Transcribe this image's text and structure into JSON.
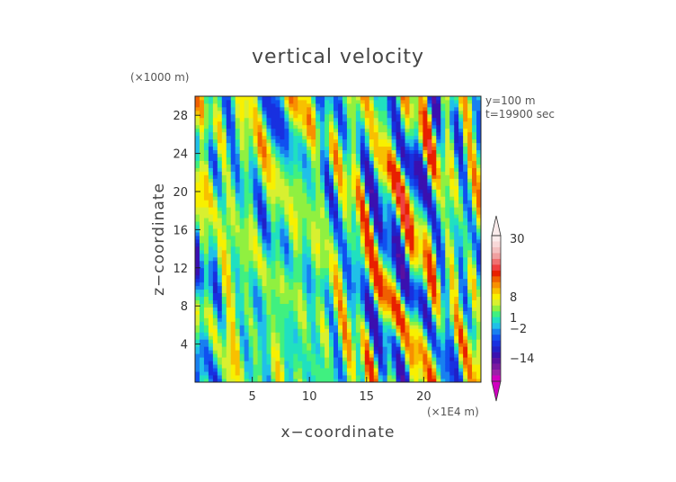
{
  "chart_data": {
    "type": "heatmap",
    "title": "vertical velocity",
    "xlabel": "x−coordinate",
    "ylabel": "z−coordinate",
    "x_unit": "(×1E4 m)",
    "y_unit": "(×1000 m)",
    "xlim": [
      0,
      25
    ],
    "ylim": [
      0,
      30
    ],
    "x_ticks": [
      5,
      10,
      15,
      20
    ],
    "x_tick_labels": [
      "5",
      "10",
      "15",
      "20"
    ],
    "y_ticks": [
      4,
      8,
      12,
      16,
      20,
      24,
      28
    ],
    "y_tick_labels": [
      "4",
      "8",
      "12",
      "16",
      "20",
      "24",
      "28"
    ],
    "annotations": [
      "y=100 m",
      "t=19900 sec"
    ],
    "colorbar": {
      "levels": [
        -20,
        -17,
        -14,
        -11,
        -8,
        -5,
        -4,
        -3,
        -2,
        -1,
        0,
        1,
        2,
        3,
        4,
        5,
        6,
        7,
        8,
        11,
        14,
        18,
        22,
        26,
        30,
        34
      ],
      "colors": [
        "#d000c0",
        "#9a20a8",
        "#7a18a0",
        "#5a10a0",
        "#3a10b0",
        "#2020c8",
        "#1830e0",
        "#1050f0",
        "#1880f0",
        "#20c0e8",
        "#20e0c0",
        "#40f080",
        "#90f040",
        "#d8f030",
        "#f8f000",
        "#f8c000",
        "#f89000",
        "#f06000",
        "#e82000",
        "#f04040",
        "#f07070",
        "#f0a0a0",
        "#f4c0c0",
        "#f8d8d8",
        "#fbecec"
      ],
      "labels": [
        "30",
        "8",
        "1",
        "−2",
        "−14"
      ]
    }
  }
}
